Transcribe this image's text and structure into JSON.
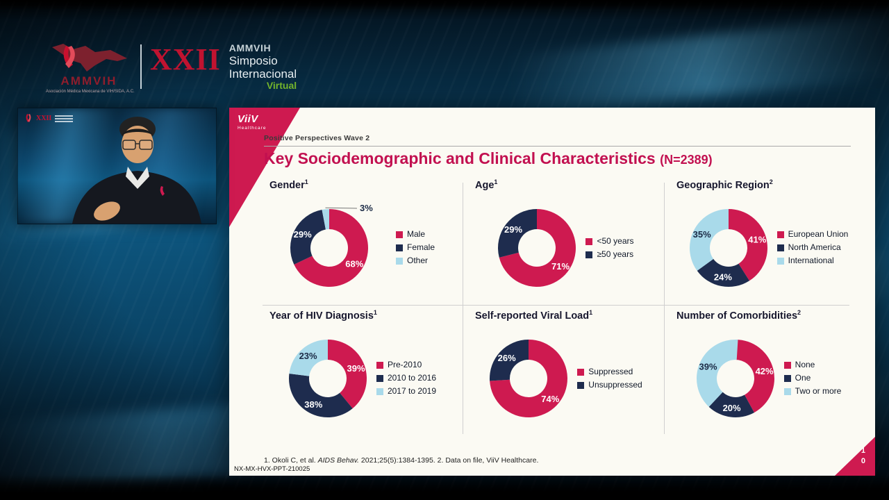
{
  "header": {
    "logo_text": "AMMVIH",
    "tagline": "Asociación Médica Mexicana de VIH/SIDA, A.C.",
    "roman": "XXII",
    "event_lines": [
      "AMMVIH",
      "Simposio",
      "Internacional"
    ],
    "event_virtual": "Virtual"
  },
  "slide": {
    "brand": {
      "name": "ViiV",
      "sub": "Healthcare"
    },
    "kicker": "Positive Perspectives Wave 2",
    "title": "Key Sociodemographic and Clinical Characteristics",
    "title_n": "(N=2389)",
    "footnote": {
      "p1": "1. Okoli C, et al. ",
      "italic": "AIDS Behav.",
      "p2": " 2021;25(5):1384-1395. 2. Data on file, ViiV Healthcare."
    },
    "slide_code": "NX-MX-HVX-PPT-210025",
    "page_number": [
      "1",
      "0"
    ],
    "palette": {
      "crimson": "#ce1a50",
      "navy": "#1e2c4e",
      "lightblue": "#a9daea"
    }
  },
  "chart_data": [
    {
      "type": "pie",
      "title": "Gender",
      "title_sup": "1",
      "unit": "%",
      "legend_position": "right",
      "segments": [
        {
          "label": "Male",
          "value": 68,
          "color": "crimson"
        },
        {
          "label": "Female",
          "value": 29,
          "color": "navy"
        },
        {
          "label": "Other",
          "value": 3,
          "color": "lightblue",
          "callout": true
        }
      ]
    },
    {
      "type": "pie",
      "title": "Age",
      "title_sup": "1",
      "unit": "%",
      "legend_position": "right",
      "segments": [
        {
          "label": "<50 years",
          "value": 71,
          "color": "crimson"
        },
        {
          "label": "≥50 years",
          "value": 29,
          "color": "navy"
        }
      ]
    },
    {
      "type": "pie",
      "title": "Geographic Region",
      "title_sup": "2",
      "unit": "%",
      "legend_position": "right",
      "segments": [
        {
          "label": "European Union",
          "value": 41,
          "color": "crimson"
        },
        {
          "label": "North America",
          "value": 24,
          "color": "navy"
        },
        {
          "label": "International",
          "value": 35,
          "color": "lightblue"
        }
      ]
    },
    {
      "type": "pie",
      "title": "Year of HIV Diagnosis",
      "title_sup": "1",
      "unit": "%",
      "legend_position": "right",
      "segments": [
        {
          "label": "Pre-2010",
          "value": 39,
          "color": "crimson"
        },
        {
          "label": "2010 to 2016",
          "value": 38,
          "color": "navy"
        },
        {
          "label": "2017 to 2019",
          "value": 23,
          "color": "lightblue"
        }
      ]
    },
    {
      "type": "pie",
      "title": "Self-reported Viral Load",
      "title_sup": "1",
      "unit": "%",
      "legend_position": "right",
      "segments": [
        {
          "label": "Suppressed",
          "value": 74,
          "color": "crimson"
        },
        {
          "label": "Unsuppressed",
          "value": 26,
          "color": "navy"
        }
      ]
    },
    {
      "type": "pie",
      "title": "Number of Comorbidities",
      "title_sup": "2",
      "unit": "%",
      "legend_position": "right",
      "segments": [
        {
          "label": "None",
          "value": 42,
          "color": "crimson"
        },
        {
          "label": "One",
          "value": 20,
          "color": "navy"
        },
        {
          "label": "Two or more",
          "value": 39,
          "color": "lightblue"
        }
      ]
    }
  ]
}
